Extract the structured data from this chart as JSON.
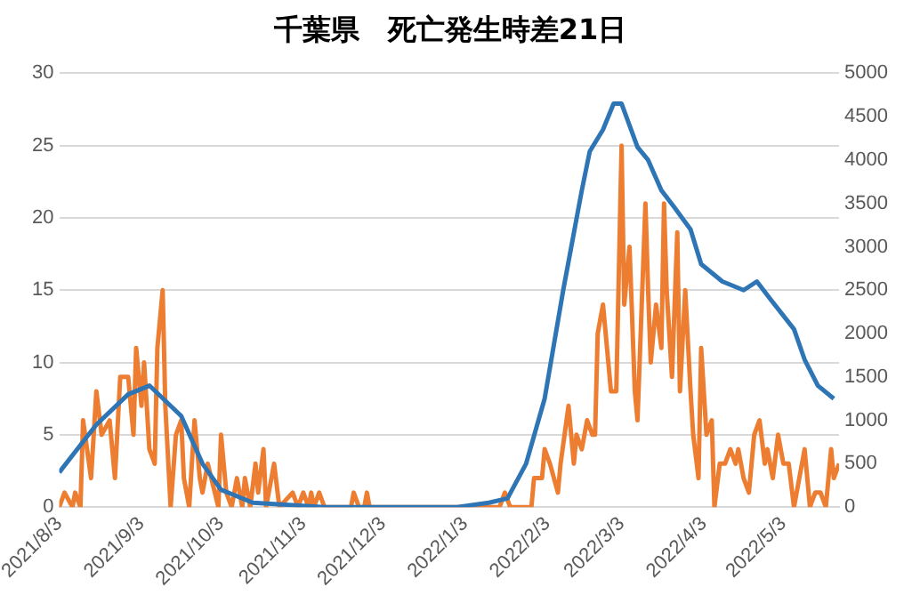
{
  "chart_data": {
    "type": "line",
    "title": "千葉県　死亡発生時差21日",
    "grid": "y",
    "legend": false,
    "marker": "none",
    "line_style": "solid",
    "xlim": [
      "2021-08-03",
      "2022-05-24"
    ],
    "xticks": [
      {
        "value": "2021-08-03",
        "label": "2021/8/3"
      },
      {
        "value": "2021-09-03",
        "label": "2021/9/3"
      },
      {
        "value": "2021-10-03",
        "label": "2021/10/3"
      },
      {
        "value": "2021-11-03",
        "label": "2021/11/3"
      },
      {
        "value": "2021-12-03",
        "label": "2021/12/3"
      },
      {
        "value": "2022-01-03",
        "label": "2022/1/3"
      },
      {
        "value": "2022-02-03",
        "label": "2022/2/3"
      },
      {
        "value": "2022-03-03",
        "label": "2022/3/3"
      },
      {
        "value": "2022-04-03",
        "label": "2022/4/3"
      },
      {
        "value": "2022-05-03",
        "label": "2022/5/3"
      }
    ],
    "ylim": [
      0,
      30
    ],
    "yticks": [
      0,
      5,
      10,
      15,
      20,
      25,
      30
    ],
    "y2lim": [
      0,
      5000
    ],
    "y2ticks": [
      0,
      500,
      1000,
      1500,
      2000,
      2500,
      3000,
      3500,
      4000,
      4500,
      5000
    ],
    "series": [
      {
        "color": "#ed7d31",
        "x": [
          "2021-08-03",
          "2021-08-05",
          "2021-08-08",
          "2021-08-09",
          "2021-08-11",
          "2021-08-12",
          "2021-08-15",
          "2021-08-17",
          "2021-08-19",
          "2021-08-22",
          "2021-08-24",
          "2021-08-26",
          "2021-08-29",
          "2021-08-31",
          "2021-09-01",
          "2021-09-03",
          "2021-09-04",
          "2021-09-06",
          "2021-09-08",
          "2021-09-09",
          "2021-09-11",
          "2021-09-12",
          "2021-09-14",
          "2021-09-16",
          "2021-09-18",
          "2021-09-19",
          "2021-09-21",
          "2021-09-23",
          "2021-09-25",
          "2021-09-26",
          "2021-09-28",
          "2021-10-02",
          "2021-10-03",
          "2021-10-05",
          "2021-10-07",
          "2021-10-09",
          "2021-10-11",
          "2021-10-12",
          "2021-10-14",
          "2021-10-16",
          "2021-10-17",
          "2021-10-19",
          "2021-10-20",
          "2021-10-23",
          "2021-10-25",
          "2021-10-30",
          "2021-11-01",
          "2021-11-03",
          "2021-11-05",
          "2021-11-06",
          "2021-11-07",
          "2021-11-09",
          "2021-11-11",
          "2021-11-21",
          "2021-11-22",
          "2021-11-24",
          "2021-11-26",
          "2021-11-27",
          "2021-11-28",
          "2022-01-16",
          "2022-01-18",
          "2022-01-20",
          "2022-01-28",
          "2022-01-29",
          "2022-02-01",
          "2022-02-02",
          "2022-02-04",
          "2022-02-07",
          "2022-02-08",
          "2022-02-11",
          "2022-02-13",
          "2022-02-14",
          "2022-02-16",
          "2022-02-18",
          "2022-02-20",
          "2022-02-21",
          "2022-02-22",
          "2022-02-24",
          "2022-02-25",
          "2022-02-27",
          "2022-03-01",
          "2022-03-03",
          "2022-03-04",
          "2022-03-06",
          "2022-03-08",
          "2022-03-09",
          "2022-03-12",
          "2022-03-13",
          "2022-03-14",
          "2022-03-16",
          "2022-03-18",
          "2022-03-19",
          "2022-03-20",
          "2022-03-22",
          "2022-03-24",
          "2022-03-25",
          "2022-03-27",
          "2022-03-29",
          "2022-03-30",
          "2022-04-01",
          "2022-04-02",
          "2022-04-04",
          "2022-04-06",
          "2022-04-07",
          "2022-04-09",
          "2022-04-11",
          "2022-04-13",
          "2022-04-15",
          "2022-04-16",
          "2022-04-18",
          "2022-04-20",
          "2022-04-22",
          "2022-04-24",
          "2022-04-26",
          "2022-04-27",
          "2022-04-29",
          "2022-05-01",
          "2022-05-03",
          "2022-05-05",
          "2022-05-07",
          "2022-05-09",
          "2022-05-11",
          "2022-05-13",
          "2022-05-15",
          "2022-05-17",
          "2022-05-19",
          "2022-05-21",
          "2022-05-22",
          "2022-05-24"
        ],
        "values": [
          0,
          1,
          0,
          1,
          0,
          6,
          2,
          8,
          5,
          6,
          2,
          9,
          9,
          5,
          11,
          7,
          10,
          4,
          3,
          11,
          15,
          7,
          0,
          5,
          6,
          2,
          0,
          6,
          2,
          1,
          3,
          0,
          5,
          1,
          0,
          2,
          0,
          2,
          0,
          3,
          1,
          4,
          0,
          3,
          0,
          1,
          0,
          1,
          0,
          1,
          0,
          1,
          0,
          0,
          1,
          0,
          0,
          1,
          0,
          0,
          1,
          0,
          0,
          2,
          2,
          4,
          3,
          1,
          3,
          7,
          3,
          5,
          4,
          6,
          5,
          5,
          12,
          14,
          12,
          8,
          8,
          25,
          14,
          18,
          8,
          6,
          21,
          15,
          10,
          14,
          11,
          21,
          15,
          9,
          19,
          8,
          15,
          8,
          5,
          2,
          11,
          5,
          6,
          0,
          3,
          3,
          4,
          3,
          4,
          2,
          1,
          5,
          6,
          3,
          4,
          2,
          5,
          3,
          3,
          0,
          2,
          4,
          0,
          1,
          1,
          0,
          4,
          2,
          3
        ]
      },
      {
        "color": "#2e75b6",
        "axis": "y2",
        "x": [
          "2021-08-03",
          "2021-08-17",
          "2021-08-29",
          "2021-09-06",
          "2021-09-18",
          "2021-09-26",
          "2021-10-03",
          "2021-10-15",
          "2021-11-11",
          "2021-12-31",
          "2022-01-12",
          "2022-01-19",
          "2022-01-26",
          "2022-02-02",
          "2022-02-09",
          "2022-02-16",
          "2022-02-19",
          "2022-02-24",
          "2022-02-28",
          "2022-03-03",
          "2022-03-09",
          "2022-03-13",
          "2022-03-18",
          "2022-03-23",
          "2022-03-29",
          "2022-04-02",
          "2022-04-10",
          "2022-04-18",
          "2022-04-23",
          "2022-04-28",
          "2022-05-07",
          "2022-05-11",
          "2022-05-16",
          "2022-05-22"
        ],
        "values": [
          400,
          950,
          1300,
          1400,
          1050,
          500,
          200,
          50,
          0,
          0,
          50,
          100,
          500,
          1250,
          2500,
          3650,
          4100,
          4350,
          4650,
          4650,
          4150,
          4000,
          3650,
          3450,
          3200,
          2800,
          2600,
          2500,
          2600,
          2400,
          2050,
          1700,
          1400,
          1250
        ]
      }
    ]
  }
}
